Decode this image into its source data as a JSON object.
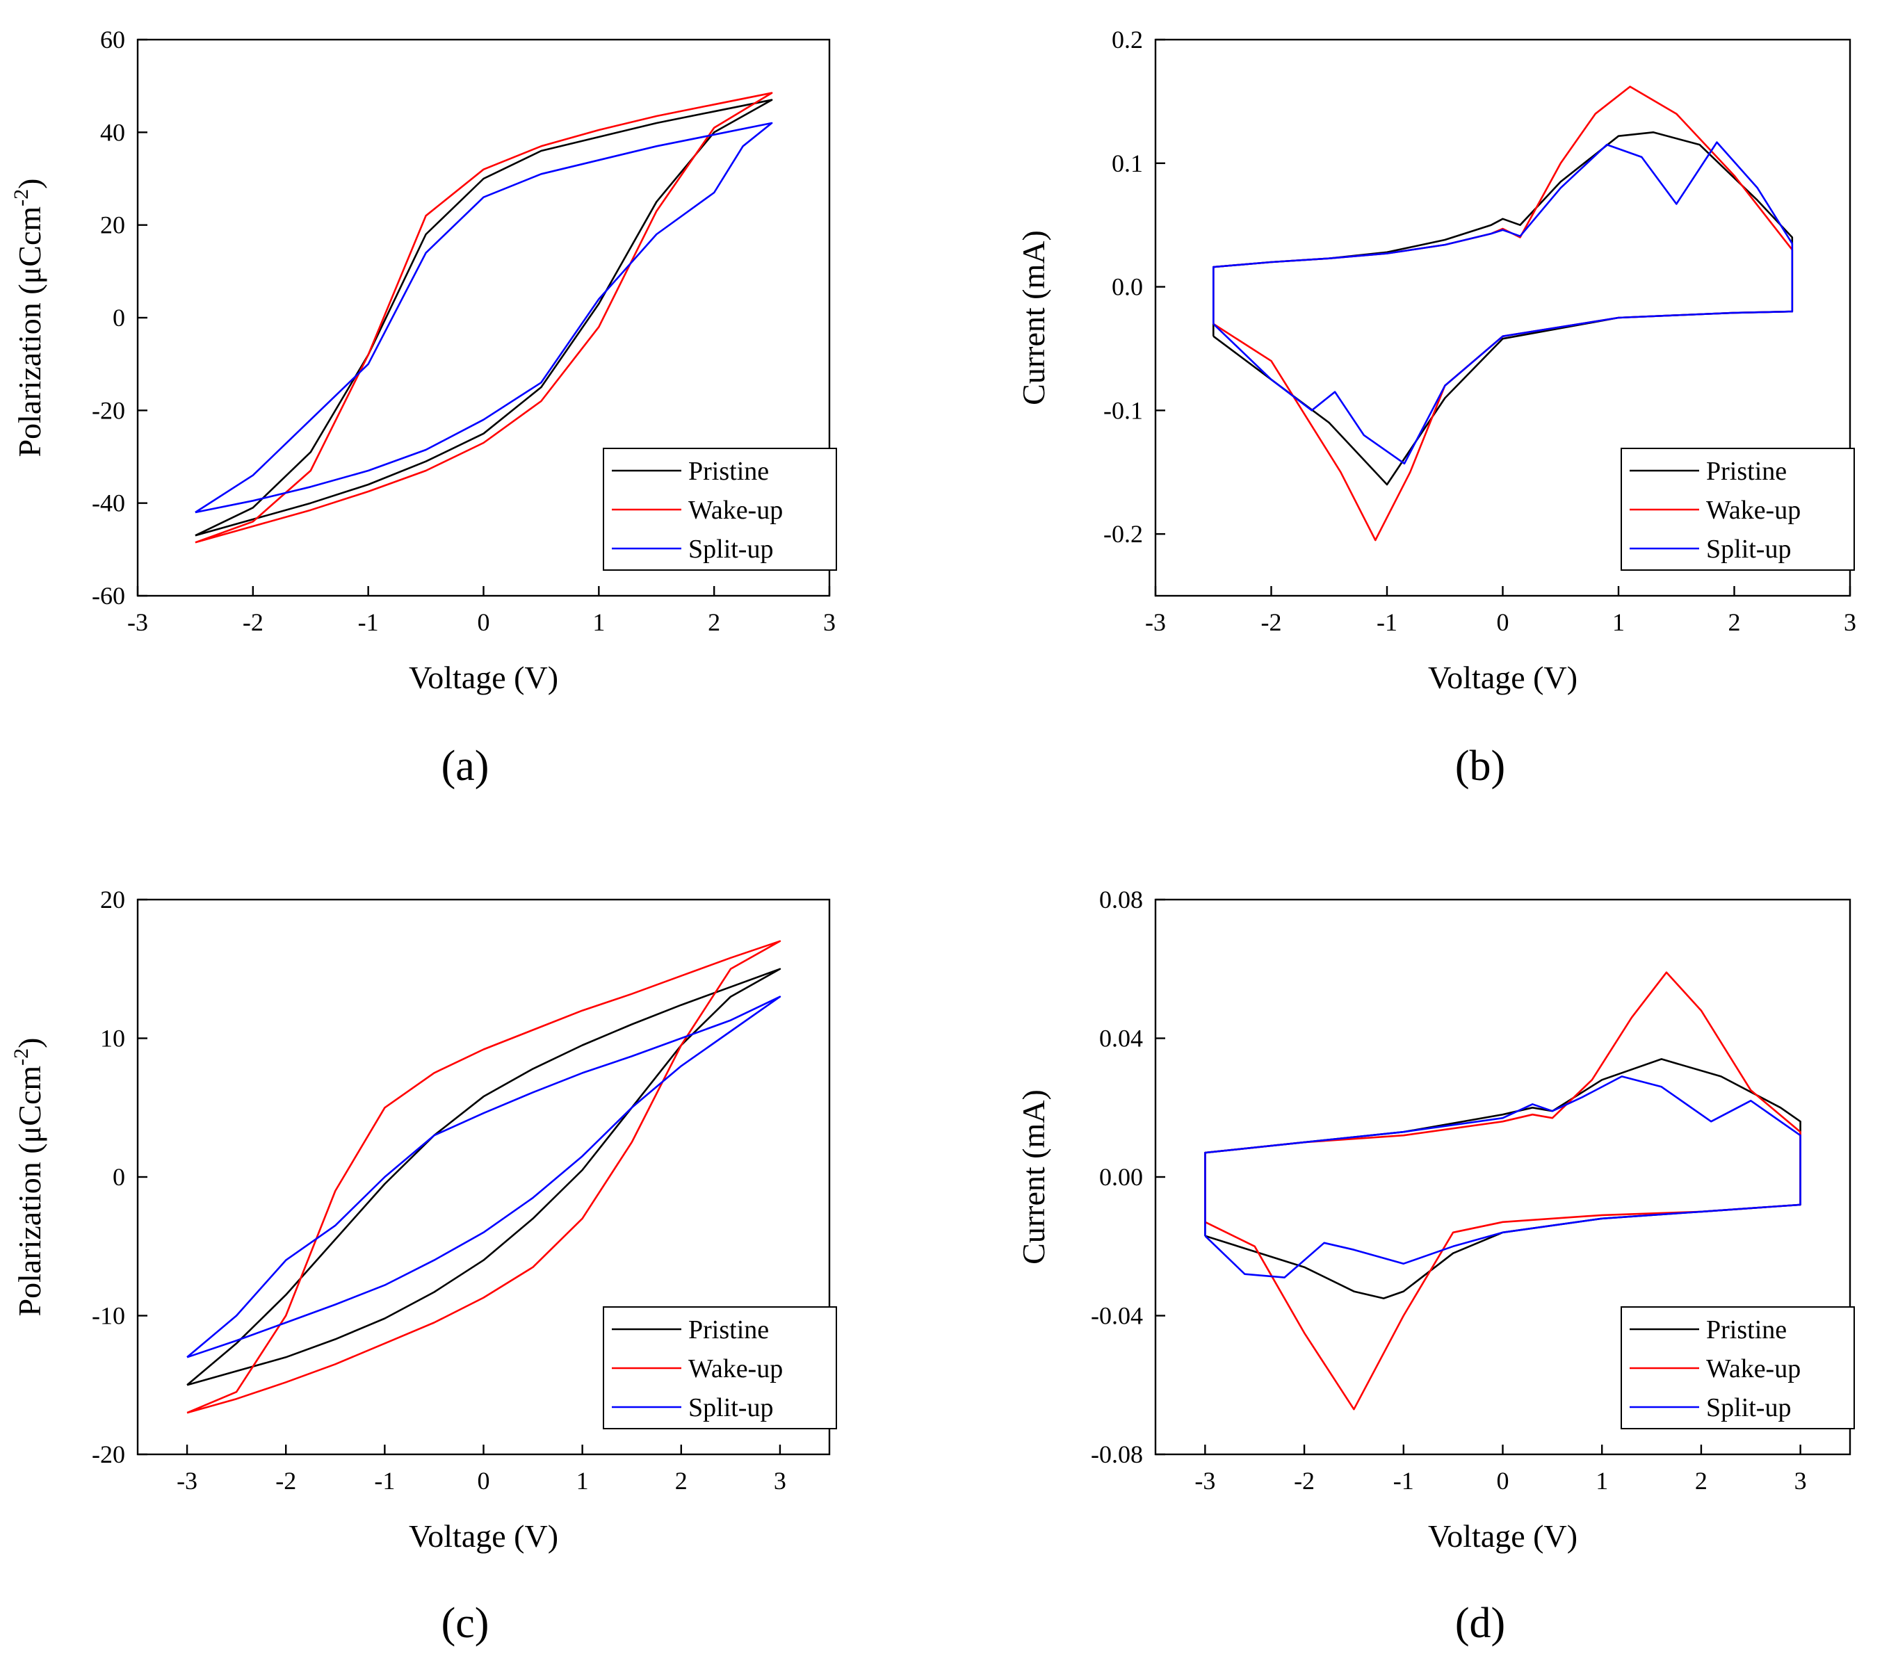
{
  "colors": {
    "Pristine": "#000000",
    "Wake-up": "#ff0000",
    "Split-up": "#0000ff"
  },
  "chart_data": [
    {
      "id": "a",
      "panel_label": "(a)",
      "type": "line",
      "title": "",
      "xlabel": "Voltage (V)",
      "ylabel_main": "Polarization (μCcm",
      "ylabel_sup": "-2",
      "ylabel_end": ")",
      "xlim": [
        -3,
        3
      ],
      "ylim": [
        -60,
        60
      ],
      "xticks": [
        -3,
        -2,
        -1,
        0,
        1,
        2,
        3
      ],
      "xtick_labels": [
        "-3",
        "-2",
        "-1",
        "0",
        "1",
        "2",
        "3"
      ],
      "yticks": [
        -60,
        -40,
        -20,
        0,
        20,
        40,
        60
      ],
      "ytick_labels": [
        "-60",
        "-40",
        "-20",
        "0",
        "20",
        "40",
        "60"
      ],
      "legend_position": "bottom-right",
      "legend": [
        "Pristine",
        "Wake-up",
        "Split-up"
      ],
      "series": [
        {
          "name": "Pristine",
          "x": [
            -2.5,
            -2.0,
            -1.5,
            -1.0,
            -0.5,
            0.0,
            0.5,
            1.0,
            1.5,
            2.0,
            2.5,
            2.0,
            1.5,
            1.0,
            0.5,
            0.0,
            -0.5,
            -1.0,
            -1.5,
            -2.0,
            -2.5
          ],
          "y": [
            -47,
            -43.5,
            -40,
            -36,
            -31,
            -25,
            -15,
            3,
            25,
            40,
            47,
            44.5,
            42,
            39,
            36,
            30,
            18,
            -8,
            -29,
            -41,
            -47
          ]
        },
        {
          "name": "Wake-up",
          "x": [
            -2.5,
            -2.0,
            -1.5,
            -1.0,
            -0.5,
            0.0,
            0.5,
            1.0,
            1.5,
            2.0,
            2.5,
            2.0,
            1.5,
            1.0,
            0.5,
            0.0,
            -0.5,
            -1.0,
            -1.5,
            -2.0,
            -2.5
          ],
          "y": [
            -48.5,
            -45,
            -41.5,
            -37.5,
            -33,
            -27,
            -18,
            -2,
            23,
            41,
            48.5,
            46,
            43.5,
            40.5,
            37,
            32,
            22,
            -8,
            -33,
            -44,
            -48.5
          ]
        },
        {
          "name": "Split-up",
          "x": [
            -2.5,
            -2.0,
            -1.5,
            -1.0,
            -0.5,
            0.0,
            0.5,
            1.0,
            1.5,
            2.0,
            2.25,
            2.5,
            2.0,
            1.5,
            1.0,
            0.5,
            0.0,
            -0.5,
            -1.0,
            -1.5,
            -2.0,
            -2.5
          ],
          "y": [
            -42,
            -39.5,
            -36.5,
            -33,
            -28.5,
            -22,
            -14,
            4,
            18,
            27,
            37,
            42,
            39.5,
            37,
            34,
            31,
            26,
            14,
            -10,
            -22,
            -34,
            -42
          ]
        }
      ]
    },
    {
      "id": "b",
      "panel_label": "(b)",
      "type": "line",
      "title": "",
      "xlabel": "Voltage (V)",
      "ylabel_main": "Current (mA)",
      "ylabel_sup": "",
      "ylabel_end": "",
      "xlim": [
        -3,
        3
      ],
      "ylim": [
        -0.25,
        0.2
      ],
      "xticks": [
        -3,
        -2,
        -1,
        0,
        1,
        2,
        3
      ],
      "xtick_labels": [
        "-3",
        "-2",
        "-1",
        "0",
        "1",
        "2",
        "3"
      ],
      "yticks": [
        -0.2,
        -0.1,
        0.0,
        0.1,
        0.2
      ],
      "ytick_labels": [
        "-0.2",
        "-0.1",
        "0.0",
        "0.1",
        "0.2"
      ],
      "legend_position": "bottom-right",
      "legend": [
        "Pristine",
        "Wake-up",
        "Split-up"
      ],
      "series": [
        {
          "name": "Pristine",
          "x": [
            -2.5,
            -2.5,
            -2.0,
            -1.5,
            -1.0,
            -0.5,
            -0.1,
            0.0,
            0.15,
            0.5,
            1.0,
            1.3,
            1.7,
            2.2,
            2.5,
            2.5,
            2.0,
            1.0,
            0.0,
            -0.5,
            -1.0,
            -1.5,
            -2.0,
            -2.5
          ],
          "y": [
            -0.04,
            0.016,
            0.02,
            0.023,
            0.028,
            0.038,
            0.05,
            0.055,
            0.05,
            0.085,
            0.122,
            0.125,
            0.115,
            0.07,
            0.04,
            -0.02,
            -0.021,
            -0.025,
            -0.042,
            -0.09,
            -0.16,
            -0.11,
            -0.075,
            -0.04
          ]
        },
        {
          "name": "Wake-up",
          "x": [
            -2.5,
            -2.5,
            -2.0,
            -1.5,
            -1.0,
            -0.5,
            -0.1,
            0.0,
            0.15,
            0.5,
            0.8,
            1.1,
            1.5,
            2.0,
            2.5,
            2.5,
            2.0,
            1.0,
            0.0,
            -0.5,
            -0.8,
            -1.1,
            -1.4,
            -2.0,
            -2.5
          ],
          "y": [
            -0.03,
            0.016,
            0.02,
            0.023,
            0.027,
            0.034,
            0.043,
            0.047,
            0.04,
            0.1,
            0.14,
            0.162,
            0.14,
            0.09,
            0.03,
            -0.02,
            -0.021,
            -0.025,
            -0.04,
            -0.08,
            -0.15,
            -0.205,
            -0.15,
            -0.06,
            -0.03
          ]
        },
        {
          "name": "Split-up",
          "x": [
            -2.5,
            -2.5,
            -2.0,
            -1.5,
            -1.0,
            -0.5,
            -0.1,
            0.0,
            0.15,
            0.5,
            0.9,
            1.2,
            1.5,
            1.85,
            2.2,
            2.5,
            2.5,
            2.0,
            1.0,
            0.0,
            -0.5,
            -0.85,
            -1.2,
            -1.45,
            -1.65,
            -2.0,
            -2.5
          ],
          "y": [
            -0.03,
            0.016,
            0.02,
            0.023,
            0.027,
            0.034,
            0.043,
            0.046,
            0.041,
            0.08,
            0.115,
            0.105,
            0.067,
            0.117,
            0.08,
            0.035,
            -0.02,
            -0.021,
            -0.025,
            -0.04,
            -0.08,
            -0.143,
            -0.12,
            -0.085,
            -0.1,
            -0.075,
            -0.03
          ]
        }
      ]
    },
    {
      "id": "c",
      "panel_label": "(c)",
      "type": "line",
      "title": "",
      "xlabel": "Voltage (V)",
      "ylabel_main": "Polarization (μCcm",
      "ylabel_sup": "-2",
      "ylabel_end": ")",
      "xlim": [
        -3.5,
        3.5
      ],
      "ylim": [
        -20,
        20
      ],
      "xticks": [
        -3,
        -2,
        -1,
        0,
        1,
        2,
        3
      ],
      "xtick_labels": [
        "-3",
        "-2",
        "-1",
        "0",
        "1",
        "2",
        "3"
      ],
      "yticks": [
        -20,
        -10,
        0,
        10,
        20
      ],
      "ytick_labels": [
        "-20",
        "-10",
        "0",
        "10",
        "20"
      ],
      "legend_position": "bottom-right",
      "legend": [
        "Pristine",
        "Wake-up",
        "Split-up"
      ],
      "series": [
        {
          "name": "Pristine",
          "x": [
            -3,
            -2.5,
            -2,
            -1.5,
            -1,
            -0.5,
            0,
            0.5,
            1,
            1.5,
            2,
            2.5,
            3,
            2.5,
            2,
            1.5,
            1,
            0.5,
            0,
            -0.5,
            -1,
            -1.5,
            -2,
            -2.5,
            -3
          ],
          "y": [
            -15,
            -14,
            -13,
            -11.7,
            -10.2,
            -8.3,
            -6,
            -3,
            0.5,
            5,
            9.5,
            13,
            15,
            13.7,
            12.4,
            11,
            9.5,
            7.8,
            5.8,
            3,
            -0.5,
            -4.5,
            -8.5,
            -12,
            -15
          ]
        },
        {
          "name": "Wake-up",
          "x": [
            -3,
            -2.5,
            -2,
            -1.5,
            -1,
            -0.5,
            0,
            0.5,
            1,
            1.5,
            2,
            2.5,
            3,
            2.5,
            2,
            1.5,
            1,
            0.5,
            0,
            -0.5,
            -1,
            -1.5,
            -2,
            -2.5,
            -3
          ],
          "y": [
            -17,
            -16,
            -14.8,
            -13.5,
            -12,
            -10.5,
            -8.7,
            -6.5,
            -3,
            2.5,
            9.5,
            15,
            17,
            15.8,
            14.5,
            13.2,
            12,
            10.6,
            9.2,
            7.5,
            5,
            -1,
            -10,
            -15.5,
            -17
          ]
        },
        {
          "name": "Split-up",
          "x": [
            -3,
            -2.5,
            -2,
            -1.5,
            -1,
            -0.5,
            0,
            0.5,
            1,
            1.5,
            2,
            2.5,
            3,
            2.5,
            2,
            1.5,
            1,
            0.5,
            0,
            -0.5,
            -1,
            -1.5,
            -2,
            -2.5,
            -3
          ],
          "y": [
            -13,
            -11.8,
            -10.5,
            -9.2,
            -7.8,
            -6,
            -4,
            -1.5,
            1.5,
            5,
            8,
            10.5,
            13,
            11.3,
            10,
            8.7,
            7.5,
            6.1,
            4.6,
            3,
            0,
            -3.5,
            -6,
            -10,
            -13
          ]
        }
      ]
    },
    {
      "id": "d",
      "panel_label": "(d)",
      "type": "line",
      "title": "",
      "xlabel": "Voltage (V)",
      "ylabel_main": "Current (mA)",
      "ylabel_sup": "",
      "ylabel_end": "",
      "xlim": [
        -3.5,
        3.5
      ],
      "ylim": [
        -0.08,
        0.08
      ],
      "xticks": [
        -3,
        -2,
        -1,
        0,
        1,
        2,
        3
      ],
      "xtick_labels": [
        "-3",
        "-2",
        "-1",
        "0",
        "1",
        "2",
        "3"
      ],
      "yticks": [
        -0.08,
        -0.04,
        0.0,
        0.04,
        0.08
      ],
      "ytick_labels": [
        "-0.08",
        "-0.04",
        "0.00",
        "0.04",
        "0.08"
      ],
      "legend_position": "bottom-right",
      "legend": [
        "Pristine",
        "Wake-up",
        "Split-up"
      ],
      "series": [
        {
          "name": "Pristine",
          "x": [
            -3,
            -3,
            -2,
            -1,
            0,
            0.3,
            0.5,
            1,
            1.6,
            2.2,
            2.8,
            3,
            3,
            2,
            1,
            0,
            -0.5,
            -1,
            -1.2,
            -1.5,
            -2,
            -3
          ],
          "y": [
            -0.017,
            0.007,
            0.01,
            0.013,
            0.018,
            0.02,
            0.019,
            0.028,
            0.034,
            0.029,
            0.02,
            0.016,
            -0.008,
            -0.01,
            -0.012,
            -0.016,
            -0.022,
            -0.033,
            -0.035,
            -0.033,
            -0.026,
            -0.017
          ]
        },
        {
          "name": "Wake-up",
          "x": [
            -3,
            -3,
            -2,
            -1,
            0,
            0.3,
            0.5,
            0.9,
            1.3,
            1.65,
            2.0,
            2.5,
            3,
            3,
            2,
            1,
            0,
            -0.5,
            -1.0,
            -1.5,
            -2.0,
            -2.5,
            -3
          ],
          "y": [
            -0.013,
            0.007,
            0.01,
            0.012,
            0.016,
            0.018,
            0.017,
            0.028,
            0.046,
            0.059,
            0.048,
            0.025,
            0.013,
            -0.008,
            -0.01,
            -0.011,
            -0.013,
            -0.016,
            -0.04,
            -0.067,
            -0.045,
            -0.02,
            -0.013
          ]
        },
        {
          "name": "Split-up",
          "x": [
            -3,
            -3,
            -2,
            -1,
            0,
            0.3,
            0.5,
            0.8,
            1.2,
            1.6,
            2.1,
            2.5,
            3,
            3,
            2,
            1,
            0,
            -0.5,
            -1.0,
            -1.5,
            -1.8,
            -2.2,
            -2.6,
            -3
          ],
          "y": [
            -0.017,
            0.007,
            0.01,
            0.013,
            0.017,
            0.021,
            0.019,
            0.023,
            0.029,
            0.026,
            0.016,
            0.022,
            0.012,
            -0.008,
            -0.01,
            -0.012,
            -0.016,
            -0.02,
            -0.025,
            -0.021,
            -0.019,
            -0.029,
            -0.028,
            -0.017
          ]
        }
      ]
    }
  ]
}
